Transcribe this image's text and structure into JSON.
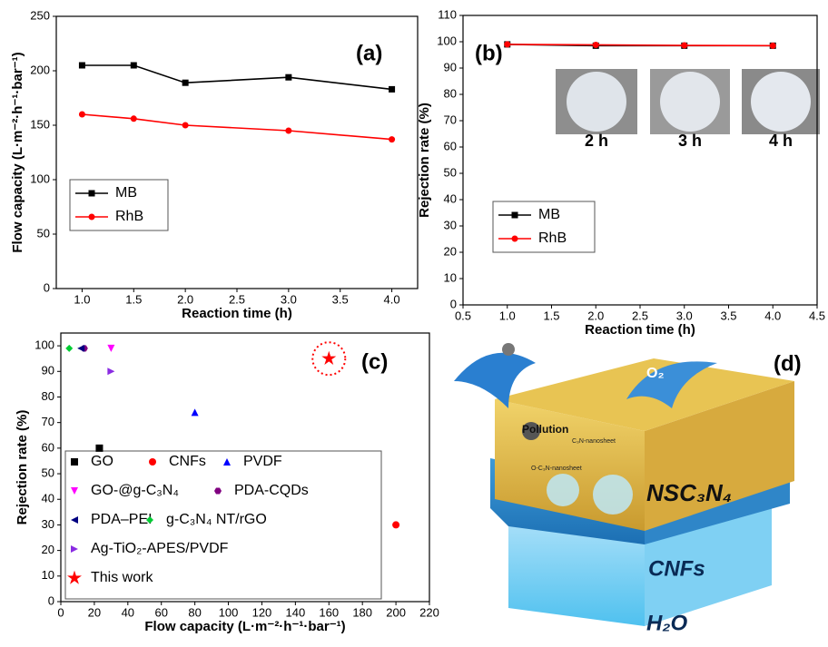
{
  "chart_data": [
    {
      "type": "line",
      "panel_label": "(a)",
      "xlabel": "Reaction time (h)",
      "ylabel": "Flow capacity (L·m⁻²·h⁻¹·bar⁻¹)",
      "x": [
        1.0,
        1.5,
        2.0,
        3.0,
        4.0
      ],
      "series": [
        {
          "name": "MB",
          "color": "#000000",
          "marker": "square",
          "values": [
            205,
            205,
            189,
            194,
            183
          ]
        },
        {
          "name": "RhB",
          "color": "#ff0000",
          "marker": "circle",
          "values": [
            160,
            156,
            150,
            145,
            137
          ]
        }
      ],
      "xlim": [
        0.75,
        4.25
      ],
      "xticks": [
        {
          "value": 1,
          "label": "1.0"
        },
        1.5,
        {
          "value": 2,
          "label": "2.0"
        },
        2.5,
        {
          "value": 3,
          "label": "3.0"
        },
        3.5,
        {
          "value": 4,
          "label": "4.0"
        }
      ],
      "ylim": [
        0,
        250
      ],
      "yticks": [
        0,
        50,
        100,
        150,
        200,
        250
      ],
      "legend": "center left"
    },
    {
      "type": "line",
      "panel_label": "(b)",
      "xlabel": "Reaction time (h)",
      "ylabel": "Rejection rate (%)",
      "x": [
        1,
        2,
        3,
        4
      ],
      "series": [
        {
          "name": "MB",
          "color": "#000000",
          "marker": "square",
          "values": [
            99,
            98.5,
            98.5,
            98.5
          ]
        },
        {
          "name": "RhB",
          "color": "#ff0000",
          "marker": "circle",
          "values": [
            99,
            98.8,
            98.6,
            98.5
          ]
        }
      ],
      "image_labels": [
        "2 h",
        "3 h",
        "4 h"
      ],
      "xlim": [
        0.5,
        4.5
      ],
      "xticks": [
        0.5,
        {
          "value": 1,
          "label": "1.0"
        },
        1.5,
        {
          "value": 2,
          "label": "2.0"
        },
        2.5,
        {
          "value": 3,
          "label": "3.0"
        },
        3.5,
        {
          "value": 4,
          "label": "4.0"
        },
        4.5
      ],
      "ylim": [
        0,
        110
      ],
      "yticks": [
        0,
        10,
        20,
        30,
        40,
        50,
        60,
        70,
        80,
        90,
        100,
        110
      ],
      "legend": "lower left"
    },
    {
      "type": "scatter",
      "panel_label": "(c)",
      "xlabel": "Flow capacity (L·m⁻²·h⁻¹·bar⁻¹)",
      "ylabel": "Rejection rate (%)",
      "series": [
        {
          "name": "GO",
          "color": "#000000",
          "marker": "square",
          "x": [
            23
          ],
          "values": [
            60
          ]
        },
        {
          "name": "CNFs",
          "color": "#ff0000",
          "marker": "circle",
          "x": [
            200
          ],
          "values": [
            30
          ]
        },
        {
          "name": "PVDF",
          "color": "#0000ff",
          "marker": "triangle-up",
          "x": [
            80
          ],
          "values": [
            74
          ]
        },
        {
          "name": "GO-@g-C₃N₄",
          "color": "#ff00ff",
          "marker": "triangle-down",
          "x": [
            30
          ],
          "values": [
            99
          ]
        },
        {
          "name": "PDA-CQDs",
          "color": "#800080",
          "marker": "hexagon",
          "x": [
            14
          ],
          "values": [
            99
          ]
        },
        {
          "name": "PDA–PEI",
          "color": "#000080",
          "marker": "triangle-left",
          "x": [
            12
          ],
          "values": [
            99
          ]
        },
        {
          "name": "g-C₃N₄ NT/rGO",
          "color": "#00cc33",
          "marker": "diamond",
          "x": [
            5
          ],
          "values": [
            99
          ]
        },
        {
          "name": "Ag-TiO₂-APES/PVDF",
          "color": "#8a2be2",
          "marker": "triangle-right",
          "x": [
            30
          ],
          "values": [
            90
          ]
        },
        {
          "name": "This work",
          "color": "#ff0000",
          "marker": "star",
          "x": [
            160
          ],
          "values": [
            95
          ],
          "highlight": true
        }
      ],
      "xlim": [
        0,
        220
      ],
      "xticks": [
        0,
        20,
        40,
        60,
        80,
        100,
        120,
        140,
        160,
        180,
        200,
        220
      ],
      "ylim": [
        0,
        105
      ],
      "yticks": [
        0,
        10,
        20,
        30,
        40,
        50,
        60,
        70,
        80,
        90,
        100
      ],
      "legend": "lower left"
    }
  ],
  "diagram": {
    "panel_label": "(d)",
    "layers": [
      "NSC₃N₄",
      "CNFs",
      "H₂O"
    ],
    "pollution": "Pollution",
    "oxygen": "O₂",
    "sheet_labels": [
      "C₃N-nanosheet",
      "O-C₃N-nanosheet"
    ]
  }
}
